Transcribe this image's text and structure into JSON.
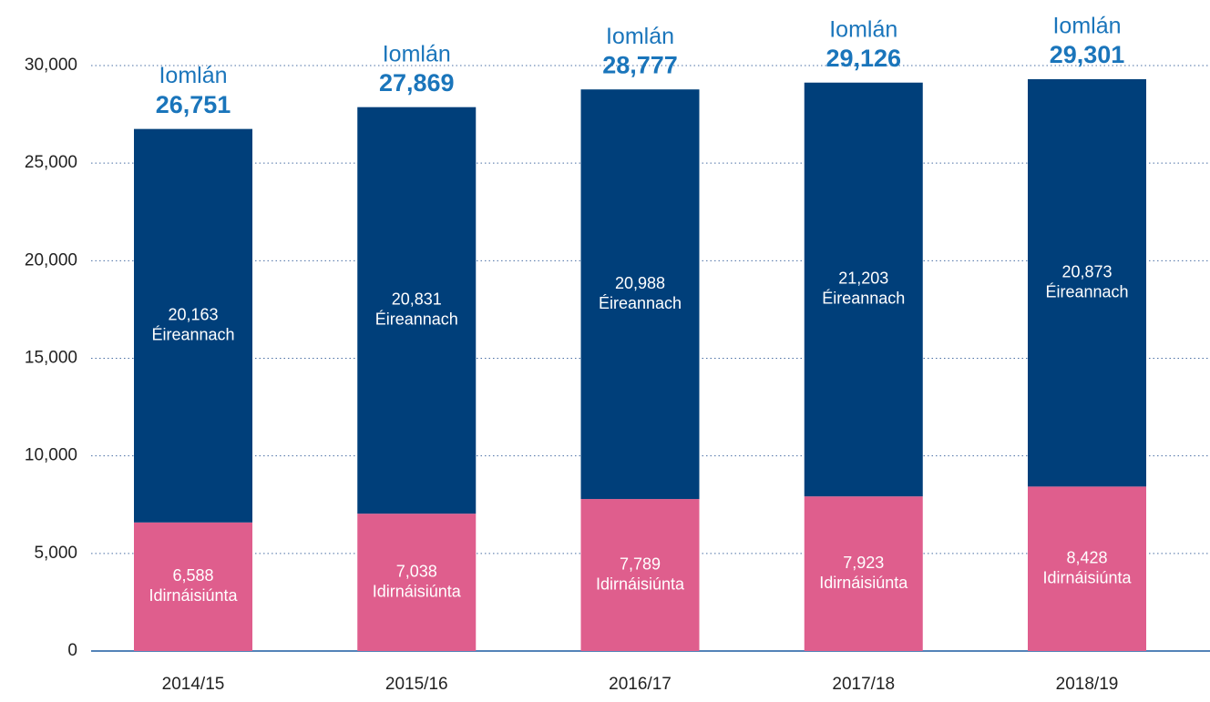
{
  "chart_data": {
    "type": "stacked_bar",
    "categories": [
      "2014/15",
      "2015/16",
      "2016/17",
      "2017/18",
      "2018/19"
    ],
    "series": [
      {
        "name": "Idirnáisiúnta",
        "color": "#df5e8d",
        "values": [
          6588,
          7038,
          7789,
          7923,
          8428
        ],
        "value_labels": [
          "6,588",
          "7,038",
          "7,789",
          "7,923",
          "8,428"
        ]
      },
      {
        "name": "Éireannach",
        "color": "#003f7a",
        "values": [
          20163,
          20831,
          20988,
          21203,
          20873
        ],
        "value_labels": [
          "20,163",
          "20,831",
          "20,988",
          "21,203",
          "20,873"
        ]
      }
    ],
    "total_name": "Iomlán",
    "totals": [
      26751,
      27869,
      28777,
      29126,
      29301
    ],
    "total_labels": [
      "26,751",
      "27,869",
      "28,777",
      "29,126",
      "29,301"
    ],
    "total_color": "#1a75bb",
    "ylim": [
      0,
      30000
    ],
    "yticks": [
      0,
      {
        "value": 5000,
        "label": "5,000"
      },
      {
        "value": 10000,
        "label": "10,000"
      },
      {
        "value": 15000,
        "label": "15,000"
      },
      {
        "value": 20000,
        "label": "20,000"
      },
      {
        "value": 25000,
        "label": "25,000"
      },
      {
        "value": 30000,
        "label": "30,000"
      }
    ],
    "grid": true
  }
}
